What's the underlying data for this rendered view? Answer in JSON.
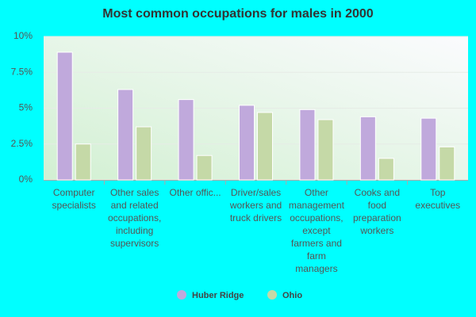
{
  "chart_data": {
    "type": "bar",
    "title": "Most common occupations for males in 2000",
    "categories": [
      "Computer specialists",
      "Other sales and related occupations, including supervisors",
      "Other offic...",
      "Driver/sales workers and truck drivers",
      "Other management occupations, except farmers and farm managers",
      "Cooks and food preparation workers",
      "Top executives"
    ],
    "series": [
      {
        "name": "Huber Ridge",
        "color": "#c0a9dc",
        "values": [
          8.9,
          6.3,
          5.6,
          5.2,
          4.9,
          4.4,
          4.3
        ]
      },
      {
        "name": "Ohio",
        "color": "#c5d9a7",
        "values": [
          2.5,
          3.7,
          1.7,
          4.7,
          4.2,
          1.5,
          2.3
        ]
      }
    ],
    "ylim": [
      0,
      10
    ],
    "yticks": [
      {
        "value": 0,
        "label": "0%"
      },
      {
        "value": 2.5,
        "label": "2.5%"
      },
      {
        "value": 5,
        "label": "5%"
      },
      {
        "value": 7.5,
        "label": "7.5%"
      },
      {
        "value": 10,
        "label": "10%"
      }
    ],
    "grid": true
  }
}
